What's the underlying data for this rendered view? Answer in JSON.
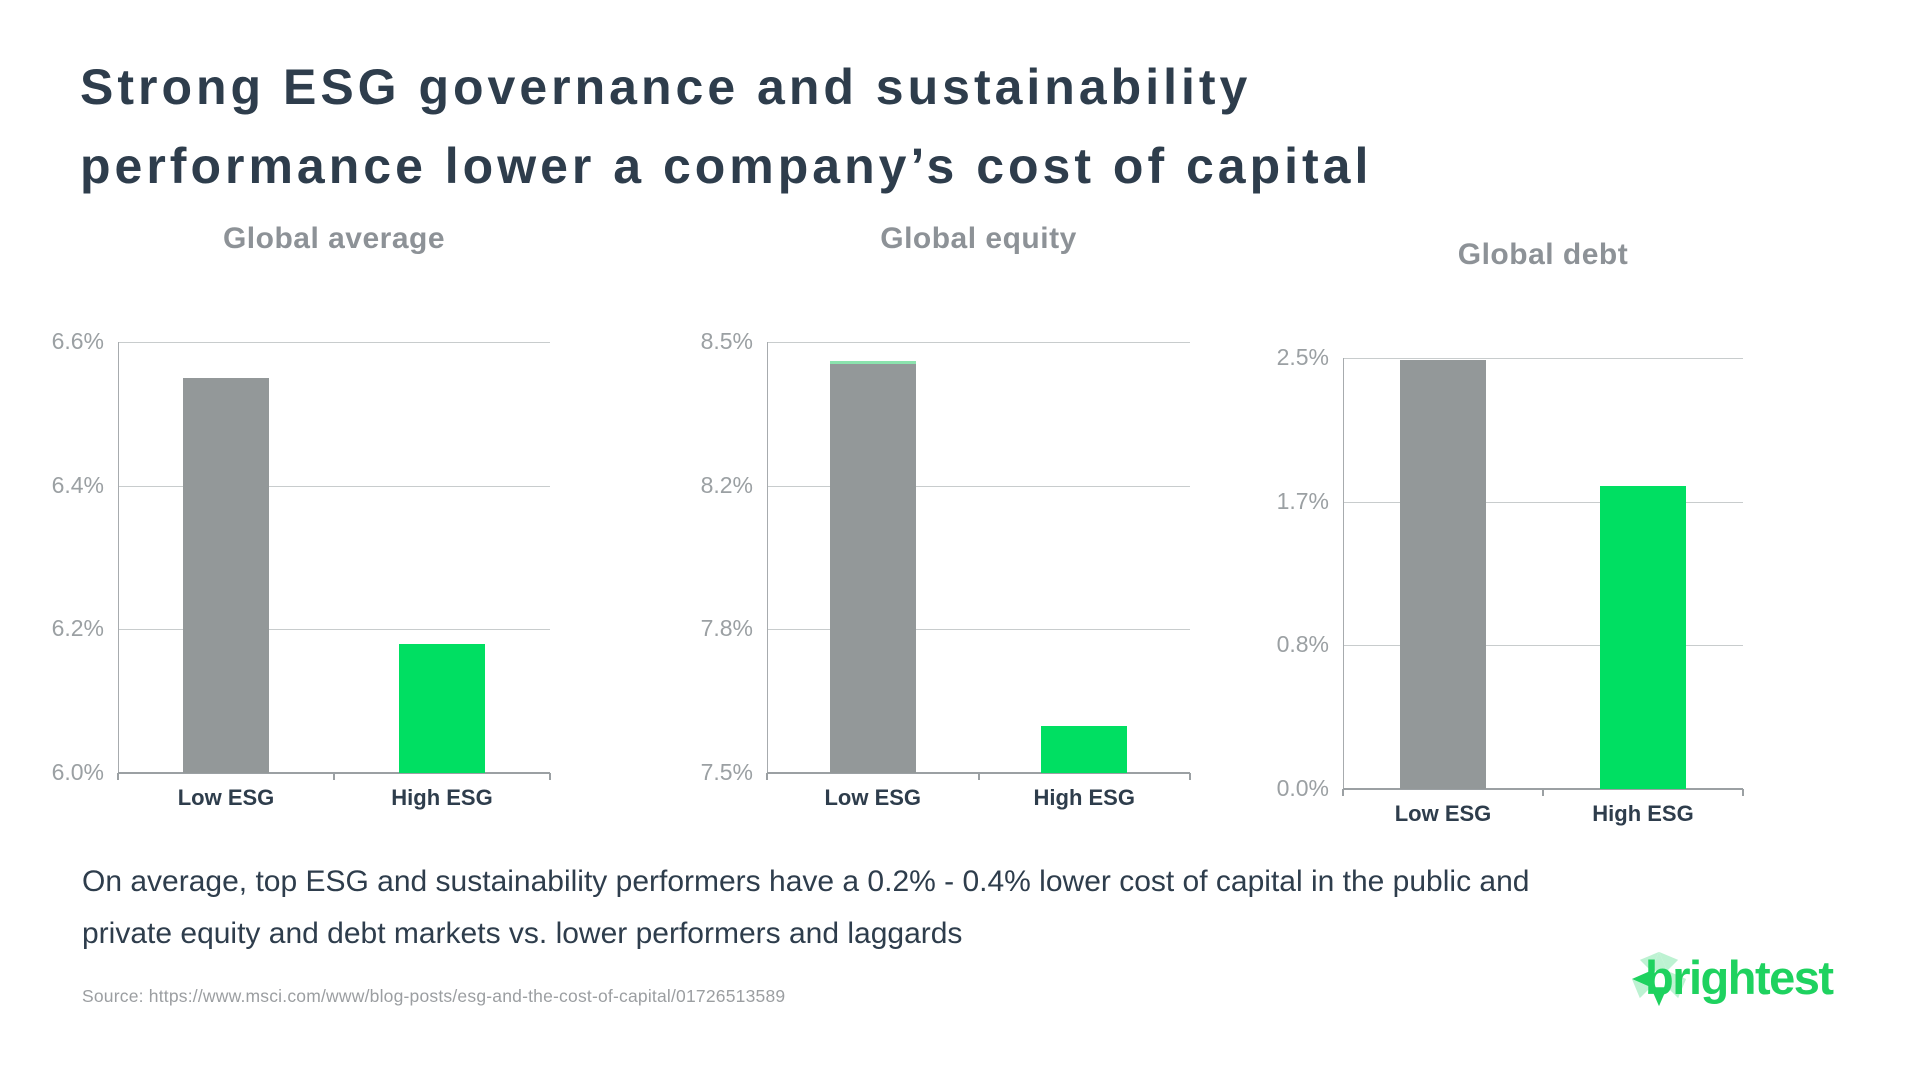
{
  "page": {
    "title_line1": "Strong ESG governance and sustainability",
    "title_line2": "performance lower a company’s cost of capital"
  },
  "chart_data": [
    {
      "type": "bar",
      "title": "Global average",
      "categories": [
        "Low ESG",
        "High ESG"
      ],
      "values": [
        6.55,
        6.18
      ],
      "unit": "%",
      "ylim": [
        6.0,
        6.6
      ],
      "yticks": [
        {
          "value": 6.6,
          "label": "6.6%"
        },
        {
          "value": 6.4,
          "label": "6.4%"
        },
        {
          "value": 6.2,
          "label": "6.2%"
        },
        {
          "value": 6.0,
          "label": "6.0%"
        }
      ],
      "bar_colors": [
        "#939899",
        "#00DF62"
      ],
      "bar_top_caps": [
        null,
        null
      ],
      "grid": true,
      "legend": false
    },
    {
      "type": "bar",
      "title": "Global equity",
      "categories": [
        "Low ESG",
        "High ESG"
      ],
      "values": [
        8.45,
        7.61
      ],
      "unit": "%",
      "ylim": [
        7.5,
        8.5
      ],
      "yticks": [
        {
          "value": 8.5,
          "label": "8.5%"
        },
        {
          "value": 8.1667,
          "label": "8.2%"
        },
        {
          "value": 7.8333,
          "label": "7.8%"
        },
        {
          "value": 7.5,
          "label": "7.5%"
        }
      ],
      "bar_colors": [
        "#939899",
        "#00DF62"
      ],
      "bar_top_caps": [
        "#8BE3AE",
        null
      ],
      "grid": true,
      "legend": false
    },
    {
      "type": "bar",
      "title": "Global debt",
      "categories": [
        "Low ESG",
        "High ESG"
      ],
      "values": [
        2.49,
        1.76
      ],
      "unit": "%",
      "ylim": [
        0.0,
        2.5
      ],
      "yticks": [
        {
          "value": 2.5,
          "label": "2.5%"
        },
        {
          "value": 1.6667,
          "label": "1.7%"
        },
        {
          "value": 0.8333,
          "label": "0.8%"
        },
        {
          "value": 0.0,
          "label": "0.0%"
        }
      ],
      "bar_colors": [
        "#939899",
        "#00DF62"
      ],
      "bar_top_caps": [
        null,
        null
      ],
      "grid": true,
      "legend": false
    }
  ],
  "footer": {
    "summary": "On average, top ESG and sustainability performers have a 0.2% - 0.4% lower cost of capital in the public and private equity and debt markets vs. lower performers and laggards",
    "source": "Source: https://www.msci.com/www/blog-posts/esg-and-the-cost-of-capital/01726513589"
  },
  "logo": {
    "wordmark": "brightest",
    "icon": "starburst-icon"
  },
  "colors": {
    "title_text": "#2E3D4C",
    "chart_title_text": "#8D9297",
    "axis_label_text": "#9BA0A3",
    "category_label_text": "#2E3D4C",
    "gridline": "#C8CCCD",
    "axis_line": "#9BA0A3",
    "bar_gray": "#939899",
    "bar_green": "#00DF62",
    "logo_green": "#1ED25F",
    "logo_mint": "#BDF2D2"
  }
}
